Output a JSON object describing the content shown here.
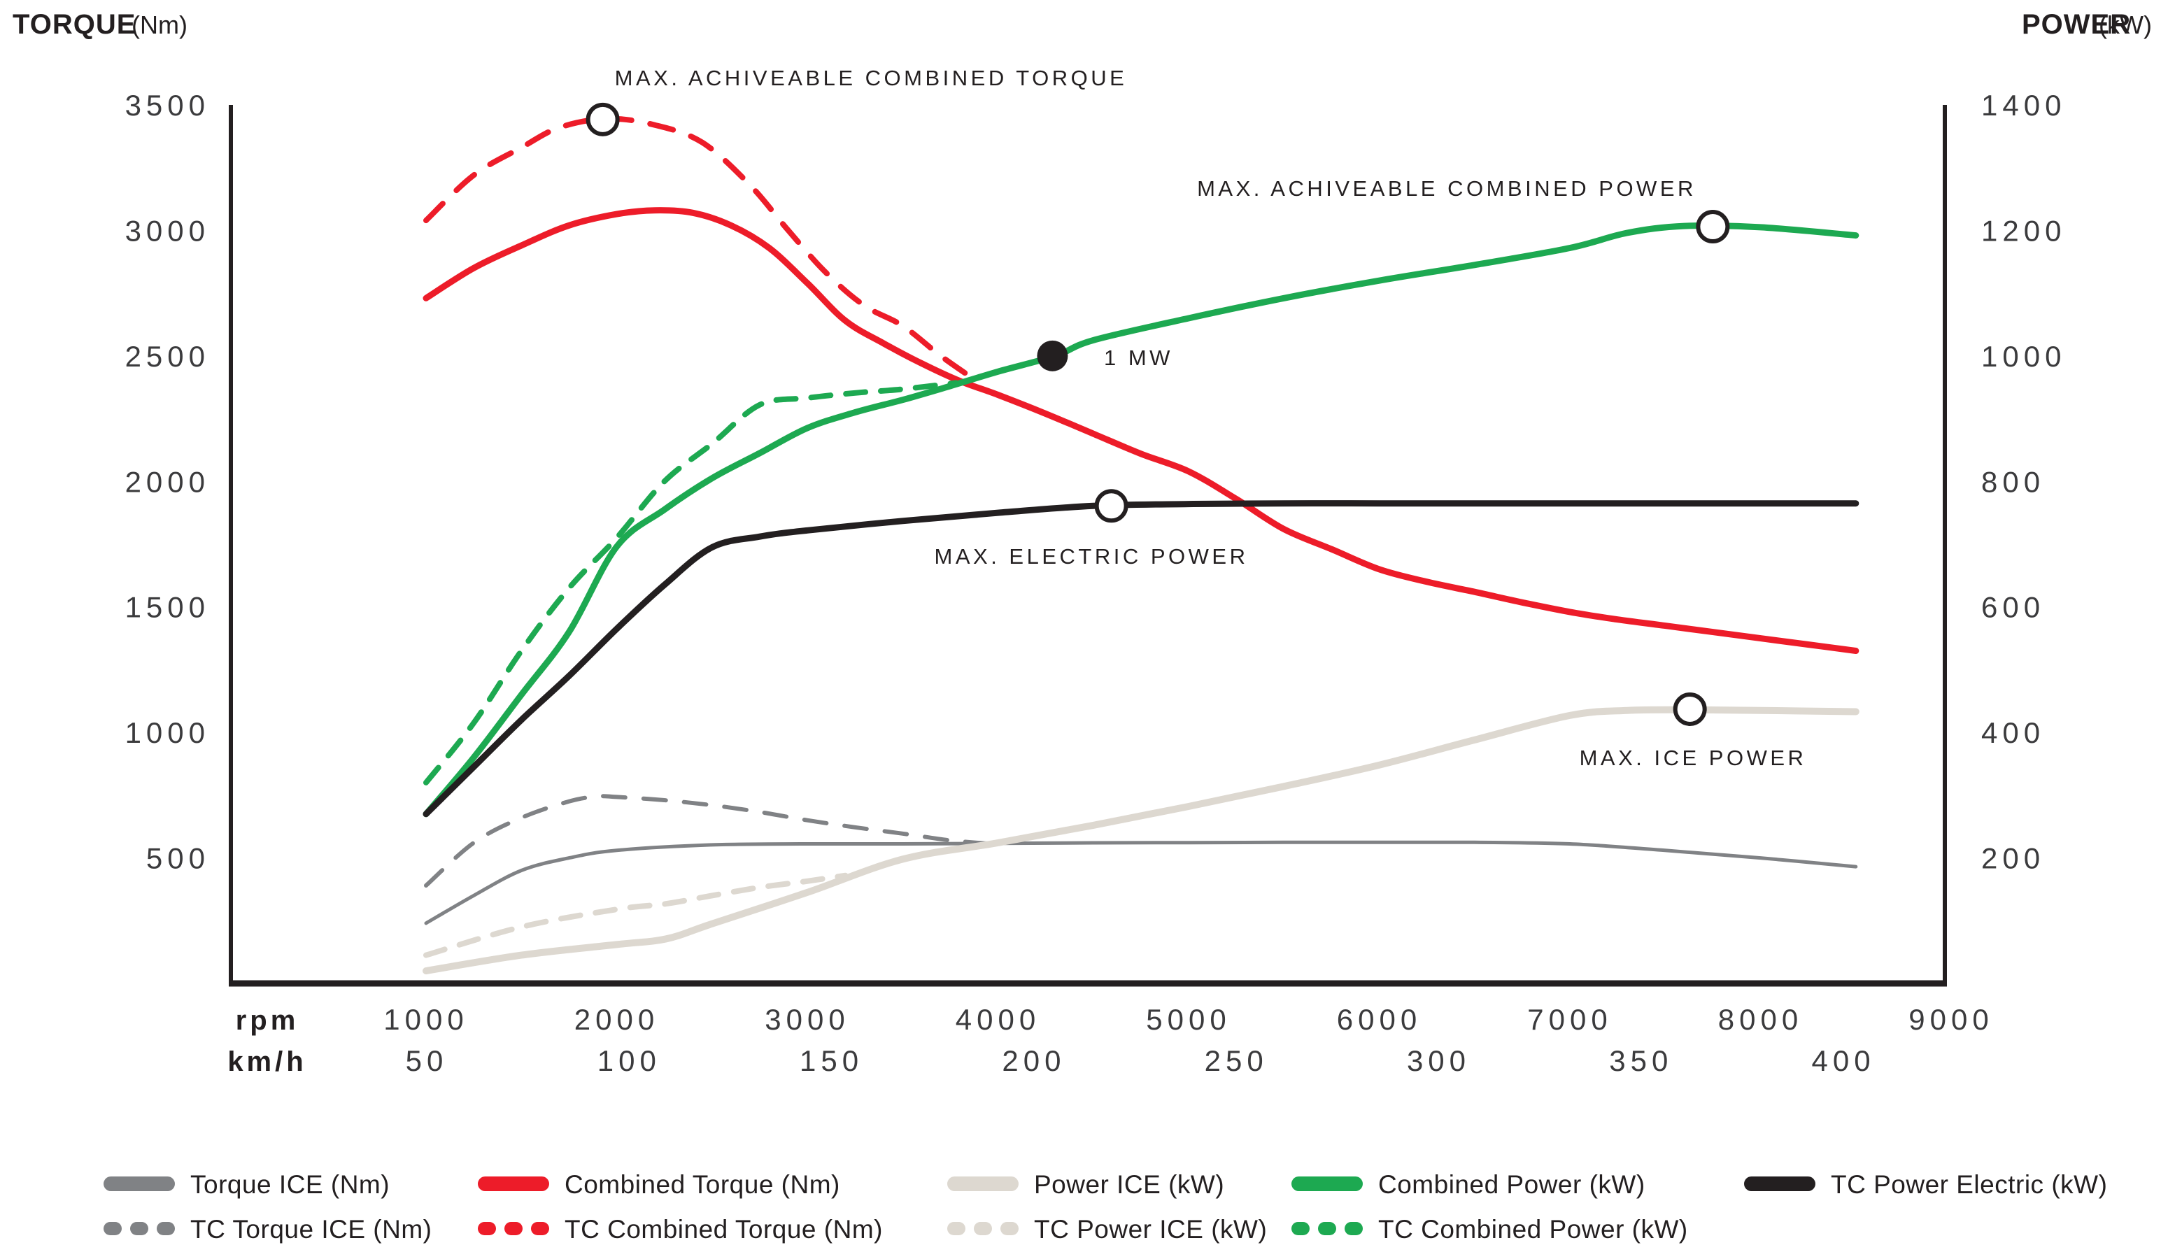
{
  "page": {
    "title_left_bold": "TORQUE",
    "title_left_unit": "(Nm)",
    "title_right_bold": "POWER",
    "title_right_unit": "(kW)"
  },
  "chart_data": {
    "type": "line",
    "title": "",
    "x_axis": {
      "rpm_header": "rpm",
      "kmh_header": "km/h",
      "rpm_ticks": [
        1000,
        2000,
        3000,
        4000,
        5000,
        6000,
        7000,
        8000,
        9000
      ],
      "kmh_ticks": [
        50,
        100,
        150,
        200,
        250,
        300,
        350,
        400
      ],
      "rpm_range": [
        1000,
        9000
      ],
      "kmh_range": [
        50,
        400
      ]
    },
    "y_left_axis": {
      "label": "TORQUE (Nm)",
      "ticks": [
        3500,
        3000,
        2500,
        2000,
        1500,
        1000,
        500
      ],
      "range": [
        0,
        3500
      ],
      "grid": false
    },
    "y_right_axis": {
      "label": "POWER (kW)",
      "ticks": [
        1400,
        1200,
        1000,
        800,
        600,
        400,
        200
      ],
      "range": [
        0,
        1400
      ],
      "grid": false
    },
    "series": [
      {
        "id": "torque-ice",
        "name": "Torque ICE (Nm)",
        "axis": "torque",
        "color": "#808285",
        "dash": null,
        "width": 5,
        "points": [
          [
            1000,
            240
          ],
          [
            1250,
            350
          ],
          [
            1500,
            450
          ],
          [
            1750,
            500
          ],
          [
            2000,
            530
          ],
          [
            2500,
            552
          ],
          [
            3000,
            556
          ],
          [
            3500,
            556
          ],
          [
            4000,
            558
          ],
          [
            4500,
            560
          ],
          [
            5000,
            561
          ],
          [
            5500,
            562
          ],
          [
            6000,
            562
          ],
          [
            6500,
            562
          ],
          [
            7000,
            556
          ],
          [
            7500,
            530
          ],
          [
            8000,
            500
          ],
          [
            8500,
            465
          ]
        ]
      },
      {
        "id": "tc-torque-ice",
        "name": "TC Torque ICE (Nm)",
        "axis": "torque",
        "color": "#808285",
        "dash": "32 26",
        "width": 6,
        "points": [
          [
            1000,
            390
          ],
          [
            1250,
            560
          ],
          [
            1500,
            660
          ],
          [
            1750,
            725
          ],
          [
            1900,
            745
          ],
          [
            2000,
            743
          ],
          [
            2250,
            730
          ],
          [
            2500,
            710
          ],
          [
            2750,
            683
          ],
          [
            3000,
            650
          ],
          [
            3250,
            622
          ],
          [
            3500,
            597
          ],
          [
            3750,
            570
          ],
          [
            3950,
            557
          ]
        ]
      },
      {
        "id": "tc-power-ice",
        "name": "TC Power ICE (kW)",
        "axis": "power",
        "color": "#DDD8D0",
        "dash": "28 22",
        "width": 8,
        "points": [
          [
            1000,
            45
          ],
          [
            1500,
            90
          ],
          [
            2000,
            118
          ],
          [
            2260,
            127
          ],
          [
            2500,
            140
          ],
          [
            2750,
            153
          ],
          [
            3000,
            163
          ],
          [
            3200,
            172
          ]
        ]
      },
      {
        "id": "power-ice",
        "name": "Power ICE (kW)",
        "axis": "power",
        "color": "#DDD8D0",
        "dash": null,
        "width": 10,
        "points": [
          [
            1000,
            20
          ],
          [
            1500,
            45
          ],
          [
            2000,
            62
          ],
          [
            2260,
            71
          ],
          [
            2500,
            95
          ],
          [
            3000,
            145
          ],
          [
            3500,
            198
          ],
          [
            4000,
            224
          ],
          [
            4500,
            252
          ],
          [
            5000,
            282
          ],
          [
            5500,
            314
          ],
          [
            6000,
            348
          ],
          [
            6500,
            388
          ],
          [
            7000,
            427
          ],
          [
            7300,
            435
          ],
          [
            7630,
            436
          ],
          [
            8000,
            435
          ],
          [
            8500,
            433
          ]
        ]
      },
      {
        "id": "tc-combined-torque",
        "name": "TC Combined Torque (Nm)",
        "axis": "torque",
        "color": "#ED1C29",
        "dash": "34 27",
        "width": 8,
        "points": [
          [
            1000,
            3040
          ],
          [
            1250,
            3220
          ],
          [
            1500,
            3330
          ],
          [
            1700,
            3410
          ],
          [
            1950,
            3445
          ],
          [
            2200,
            3420
          ],
          [
            2450,
            3350
          ],
          [
            2700,
            3180
          ],
          [
            2900,
            3000
          ],
          [
            3100,
            2830
          ],
          [
            3300,
            2700
          ],
          [
            3500,
            2620
          ],
          [
            3700,
            2500
          ],
          [
            3860,
            2415
          ]
        ]
      },
      {
        "id": "combined-torque",
        "name": "Combined Torque (Nm)",
        "axis": "torque",
        "color": "#ED1C29",
        "dash": null,
        "width": 9,
        "points": [
          [
            1000,
            2730
          ],
          [
            1250,
            2850
          ],
          [
            1500,
            2940
          ],
          [
            1750,
            3020
          ],
          [
            2000,
            3065
          ],
          [
            2200,
            3080
          ],
          [
            2400,
            3070
          ],
          [
            2600,
            3020
          ],
          [
            2800,
            2930
          ],
          [
            3000,
            2790
          ],
          [
            3200,
            2640
          ],
          [
            3400,
            2550
          ],
          [
            3600,
            2470
          ],
          [
            3800,
            2400
          ],
          [
            4000,
            2345
          ],
          [
            4250,
            2270
          ],
          [
            4500,
            2190
          ],
          [
            4750,
            2110
          ],
          [
            5000,
            2040
          ],
          [
            5250,
            1930
          ],
          [
            5500,
            1810
          ],
          [
            5750,
            1730
          ],
          [
            6000,
            1650
          ],
          [
            6250,
            1600
          ],
          [
            6500,
            1560
          ],
          [
            6750,
            1518
          ],
          [
            7000,
            1480
          ],
          [
            7250,
            1450
          ],
          [
            7500,
            1425
          ],
          [
            7750,
            1400
          ],
          [
            8000,
            1375
          ],
          [
            8250,
            1350
          ],
          [
            8500,
            1325
          ]
        ]
      },
      {
        "id": "tc-combined-power",
        "name": "TC Combined Power (kW)",
        "axis": "power",
        "color": "#1DA951",
        "dash": "28 22",
        "width": 8,
        "points": [
          [
            1000,
            320
          ],
          [
            1250,
            415
          ],
          [
            1500,
            530
          ],
          [
            1750,
            630
          ],
          [
            2000,
            710
          ],
          [
            2250,
            800
          ],
          [
            2500,
            860
          ],
          [
            2750,
            922
          ],
          [
            3000,
            933
          ],
          [
            3250,
            941
          ],
          [
            3500,
            947
          ],
          [
            3780,
            957
          ]
        ]
      },
      {
        "id": "combined-power",
        "name": "Combined Power (kW)",
        "axis": "power",
        "color": "#1DA951",
        "dash": null,
        "width": 9,
        "points": [
          [
            1000,
            270
          ],
          [
            1250,
            360
          ],
          [
            1500,
            460
          ],
          [
            1750,
            560
          ],
          [
            2000,
            696
          ],
          [
            2250,
            755
          ],
          [
            2500,
            805
          ],
          [
            2750,
            845
          ],
          [
            3000,
            885
          ],
          [
            3250,
            910
          ],
          [
            3500,
            930
          ],
          [
            3750,
            952
          ],
          [
            4000,
            975
          ],
          [
            4300,
            1000
          ],
          [
            4500,
            1025
          ],
          [
            5000,
            1060
          ],
          [
            5500,
            1092
          ],
          [
            6000,
            1120
          ],
          [
            6500,
            1145
          ],
          [
            7000,
            1172
          ],
          [
            7300,
            1196
          ],
          [
            7600,
            1207
          ],
          [
            8000,
            1205
          ],
          [
            8500,
            1192
          ]
        ]
      },
      {
        "id": "tc-power-electric",
        "name": "TC Power Electric (kW)",
        "axis": "power",
        "color": "#231F20",
        "dash": null,
        "width": 9,
        "points": [
          [
            1000,
            270
          ],
          [
            1250,
            345
          ],
          [
            1500,
            420
          ],
          [
            1750,
            490
          ],
          [
            2000,
            565
          ],
          [
            2250,
            635
          ],
          [
            2500,
            695
          ],
          [
            2750,
            712
          ],
          [
            3000,
            722
          ],
          [
            3500,
            737
          ],
          [
            4000,
            750
          ],
          [
            4500,
            761
          ],
          [
            5000,
            764
          ],
          [
            5500,
            765
          ],
          [
            6000,
            765
          ],
          [
            6500,
            765
          ],
          [
            7000,
            765
          ],
          [
            7500,
            765
          ],
          [
            8000,
            765
          ],
          [
            8500,
            765
          ]
        ]
      }
    ],
    "markers": [
      {
        "id": "max-combined-torque-marker",
        "style": "open",
        "axis": "torque",
        "rpm": 1927,
        "value": 3442
      },
      {
        "id": "max-combined-power-marker",
        "style": "open",
        "axis": "power",
        "rpm": 7750,
        "value": 1206
      },
      {
        "id": "one-mw-marker",
        "style": "filled",
        "axis": "power",
        "rpm": 4286,
        "value": 1000
      },
      {
        "id": "max-electric-power-marker",
        "style": "open",
        "axis": "power",
        "rpm": 4595,
        "value": 761
      },
      {
        "id": "max-ice-power-marker",
        "style": "open",
        "axis": "power",
        "rpm": 7630,
        "value": 437
      }
    ],
    "annotations": [
      {
        "id": "max-combined-torque-label",
        "text": "MAX. ACHIVEABLE COMBINED TORQUE"
      },
      {
        "id": "max-combined-power-label",
        "text": "MAX. ACHIVEABLE COMBINED POWER"
      },
      {
        "id": "one-mw-label",
        "text": "1 MW"
      },
      {
        "id": "max-electric-power-label",
        "text": "MAX. ELECTRIC POWER"
      },
      {
        "id": "max-ice-power-label",
        "text": "MAX. ICE POWER"
      }
    ],
    "legend_position": "bottom"
  },
  "legend": {
    "rows": [
      [
        {
          "label": "Torque ICE (Nm)",
          "color": "#808285",
          "dashed": false
        },
        {
          "label": "Combined Torque (Nm)",
          "color": "#ED1C29",
          "dashed": false
        },
        {
          "label": "Power ICE (kW)",
          "color": "#DDD8D0",
          "dashed": false
        },
        {
          "label": "Combined Power (kW)",
          "color": "#1DA951",
          "dashed": false
        },
        {
          "label": "TC Power Electric (kW)",
          "color": "#231F20",
          "dashed": false
        }
      ],
      [
        {
          "label": "TC Torque ICE (Nm)",
          "color": "#808285",
          "dashed": true
        },
        {
          "label": "TC Combined Torque (Nm)",
          "color": "#ED1C29",
          "dashed": true
        },
        {
          "label": "TC Power ICE (kW)",
          "color": "#DDD8D0",
          "dashed": true
        },
        {
          "label": "TC Combined Power (kW)",
          "color": "#1DA951",
          "dashed": true
        }
      ]
    ]
  },
  "colors": {
    "red": "#ED1C29",
    "green": "#1DA951",
    "gray": "#808285",
    "beige": "#DDD8D0",
    "black": "#231F20",
    "text": "#231F20",
    "tick_text": "#3B3B3D",
    "background": "#FFFFFF"
  }
}
